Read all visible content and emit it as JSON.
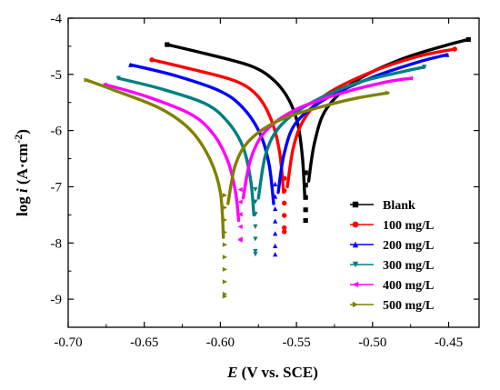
{
  "chart_data": {
    "type": "line",
    "xlabel": {
      "italic": "E",
      "rest": " (V vs. SCE)"
    },
    "ylabel": {
      "prefix": "log ",
      "italic": "i",
      "unit": " (A·cm",
      "sup": "-2",
      "close": ")"
    },
    "xlim": [
      -0.7,
      -0.43
    ],
    "ylim": [
      -9.5,
      -4
    ],
    "x_ticks": [
      "-0.70",
      "-0.65",
      "-0.60",
      "-0.55",
      "-0.50",
      "-0.45"
    ],
    "y_ticks": [
      "-4",
      "-5",
      "-6",
      "-7",
      "-8",
      "-9"
    ],
    "grid": false,
    "legend_position": "bottom-right",
    "series": [
      {
        "name": "Blank",
        "color": "#000000",
        "marker": "square",
        "ecorr": -0.544,
        "min_log_i": -7.6,
        "cathodic": [
          [
            -0.635,
            -4.47
          ],
          [
            -0.61,
            -4.63
          ],
          [
            -0.58,
            -4.85
          ],
          [
            -0.565,
            -5.1
          ],
          [
            -0.555,
            -5.45
          ],
          [
            -0.549,
            -5.9
          ],
          [
            -0.546,
            -6.5
          ],
          [
            -0.5445,
            -7.2
          ]
        ],
        "anodic": [
          [
            -0.542,
            -6.9
          ],
          [
            -0.538,
            -6.2
          ],
          [
            -0.53,
            -5.6
          ],
          [
            -0.51,
            -5.1
          ],
          [
            -0.48,
            -4.72
          ],
          [
            -0.45,
            -4.47
          ],
          [
            -0.437,
            -4.38
          ]
        ]
      },
      {
        "name": "100 mg/L",
        "color": "#ff0000",
        "marker": "circle",
        "ecorr": -0.558,
        "min_log_i": -7.8,
        "cathodic": [
          [
            -0.645,
            -4.74
          ],
          [
            -0.62,
            -4.9
          ],
          [
            -0.59,
            -5.12
          ],
          [
            -0.575,
            -5.4
          ],
          [
            -0.566,
            -5.85
          ],
          [
            -0.561,
            -6.4
          ],
          [
            -0.5585,
            -7.1
          ]
        ],
        "anodic": [
          [
            -0.556,
            -7.0
          ],
          [
            -0.552,
            -6.3
          ],
          [
            -0.545,
            -5.8
          ],
          [
            -0.53,
            -5.35
          ],
          [
            -0.5,
            -4.95
          ],
          [
            -0.47,
            -4.68
          ],
          [
            -0.446,
            -4.55
          ]
        ]
      },
      {
        "name": "200 mg/L",
        "color": "#0000ff",
        "marker": "triangle-up",
        "ecorr": -0.564,
        "min_log_i": -8.2,
        "cathodic": [
          [
            -0.659,
            -4.83
          ],
          [
            -0.63,
            -5.02
          ],
          [
            -0.6,
            -5.3
          ],
          [
            -0.585,
            -5.6
          ],
          [
            -0.574,
            -6.05
          ],
          [
            -0.568,
            -6.6
          ],
          [
            -0.565,
            -7.3
          ]
        ],
        "anodic": [
          [
            -0.562,
            -7.1
          ],
          [
            -0.558,
            -6.4
          ],
          [
            -0.55,
            -5.85
          ],
          [
            -0.53,
            -5.42
          ],
          [
            -0.5,
            -5.05
          ],
          [
            -0.47,
            -4.78
          ],
          [
            -0.451,
            -4.65
          ]
        ]
      },
      {
        "name": "300 mg/L",
        "color": "#008080",
        "marker": "triangle-down",
        "ecorr": -0.577,
        "min_log_i": -8.2,
        "cathodic": [
          [
            -0.667,
            -5.07
          ],
          [
            -0.64,
            -5.25
          ],
          [
            -0.61,
            -5.52
          ],
          [
            -0.595,
            -5.85
          ],
          [
            -0.585,
            -6.3
          ],
          [
            -0.58,
            -6.9
          ],
          [
            -0.578,
            -7.5
          ]
        ],
        "anodic": [
          [
            -0.575,
            -7.2
          ],
          [
            -0.57,
            -6.4
          ],
          [
            -0.56,
            -5.9
          ],
          [
            -0.54,
            -5.5
          ],
          [
            -0.51,
            -5.15
          ],
          [
            -0.48,
            -4.95
          ],
          [
            -0.466,
            -4.87
          ]
        ]
      },
      {
        "name": "400 mg/L",
        "color": "#ff00ff",
        "marker": "triangle-left",
        "ecorr": -0.587,
        "min_log_i": -7.95,
        "cathodic": [
          [
            -0.676,
            -5.18
          ],
          [
            -0.65,
            -5.38
          ],
          [
            -0.62,
            -5.7
          ],
          [
            -0.605,
            -6.05
          ],
          [
            -0.595,
            -6.55
          ],
          [
            -0.59,
            -7.1
          ],
          [
            -0.588,
            -7.6
          ]
        ],
        "anodic": [
          [
            -0.585,
            -7.2
          ],
          [
            -0.58,
            -6.5
          ],
          [
            -0.57,
            -6.0
          ],
          [
            -0.55,
            -5.62
          ],
          [
            -0.52,
            -5.33
          ],
          [
            -0.49,
            -5.13
          ],
          [
            -0.475,
            -5.07
          ]
        ]
      },
      {
        "name": "500 mg/L",
        "color": "#808000",
        "marker": "triangle-right",
        "ecorr": -0.597,
        "min_log_i": -8.95,
        "cathodic": [
          [
            -0.688,
            -5.1
          ],
          [
            -0.67,
            -5.28
          ],
          [
            -0.64,
            -5.6
          ],
          [
            -0.62,
            -5.98
          ],
          [
            -0.607,
            -6.5
          ],
          [
            -0.6,
            -7.1
          ],
          [
            -0.598,
            -7.9
          ]
        ],
        "anodic": [
          [
            -0.595,
            -7.3
          ],
          [
            -0.59,
            -6.6
          ],
          [
            -0.58,
            -6.15
          ],
          [
            -0.56,
            -5.8
          ],
          [
            -0.53,
            -5.55
          ],
          [
            -0.51,
            -5.42
          ],
          [
            -0.49,
            -5.33
          ]
        ]
      }
    ]
  }
}
